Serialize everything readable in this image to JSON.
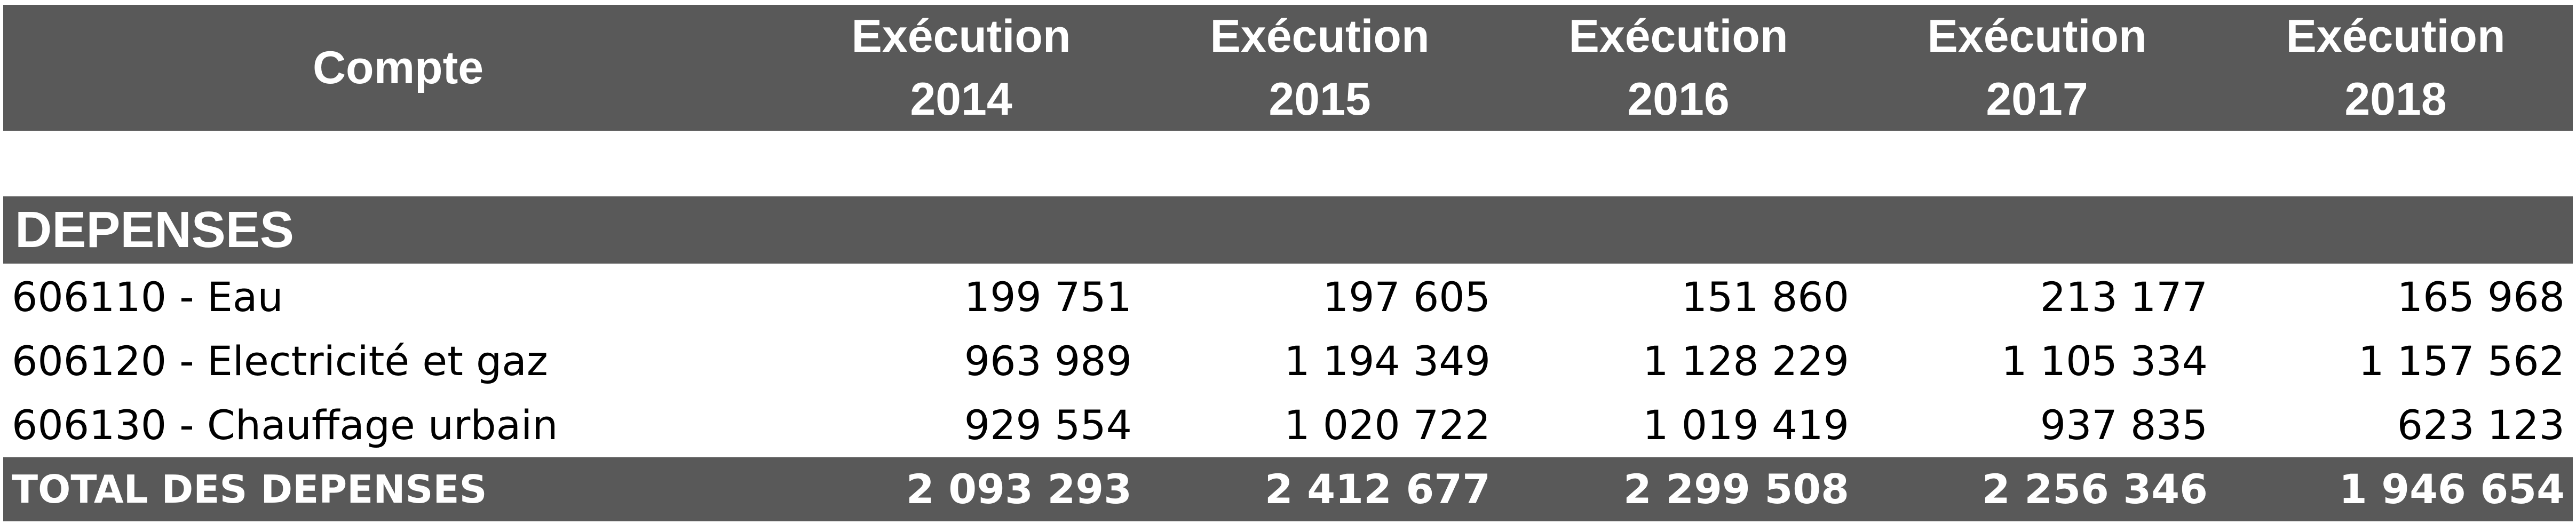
{
  "header": {
    "account_label": "Compte",
    "years": [
      {
        "line1": "Exécution",
        "line2": "2014"
      },
      {
        "line1": "Exécution",
        "line2": "2015"
      },
      {
        "line1": "Exécution",
        "line2": "2016"
      },
      {
        "line1": "Exécution",
        "line2": "2017"
      },
      {
        "line1": "Exécution",
        "line2": "2018"
      }
    ]
  },
  "section": {
    "title": "DEPENSES"
  },
  "rows": [
    {
      "label": "606110 - Eau",
      "values": [
        "199 751",
        "197 605",
        "151 860",
        "213 177",
        "165 968"
      ]
    },
    {
      "label": "606120 - Electricité et gaz",
      "values": [
        "963 989",
        "1 194 349",
        "1 128 229",
        "1 105 334",
        "1 157 562"
      ]
    },
    {
      "label": "606130 - Chauffage urbain",
      "values": [
        "929 554",
        "1 020 722",
        "1 019 419",
        "937 835",
        "623 123"
      ]
    }
  ],
  "total": {
    "label": "TOTAL DES DEPENSES",
    "values": [
      "2 093 293",
      "2 412 677",
      "2 299 508",
      "2 256 346",
      "1 946 654"
    ]
  },
  "colors": {
    "band": "#595959",
    "band_text": "#ffffff",
    "body_text": "#000000",
    "background": "#ffffff"
  }
}
